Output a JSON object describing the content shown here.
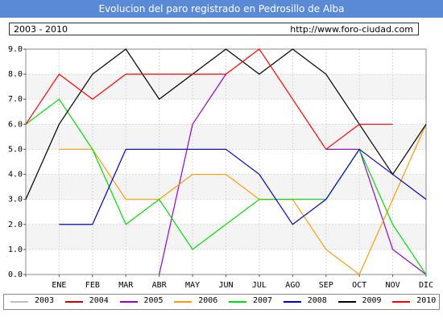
{
  "header": {
    "title": "Evolucion del paro registrado en Pedrosillo de Alba",
    "period": "2003 - 2010",
    "url": "http://www.foro-ciudad.com"
  },
  "chart_data": {
    "type": "line",
    "categories": [
      "",
      "ENE",
      "FEB",
      "MAR",
      "ABR",
      "MAY",
      "JUN",
      "JUL",
      "AGO",
      "SEP",
      "OCT",
      "NOV",
      "DIC"
    ],
    "ylim": [
      0,
      9
    ],
    "yticks": [
      "0.0",
      "1.0",
      "2.0",
      "3.0",
      "4.0",
      "5.0",
      "6.0",
      "7.0",
      "8.0",
      "9.0"
    ],
    "grid": true,
    "legend_position": "bottom",
    "series": [
      {
        "name": "2003",
        "color": "#c0c0c0",
        "values": [
          null,
          null,
          null,
          null,
          null,
          null,
          null,
          null,
          null,
          null,
          null,
          null,
          null
        ]
      },
      {
        "name": "2004",
        "color": "#cc0000",
        "values": [
          null,
          null,
          null,
          null,
          null,
          null,
          null,
          null,
          null,
          null,
          null,
          null,
          null
        ]
      },
      {
        "name": "2005",
        "color": "#9900cc",
        "values": [
          null,
          null,
          null,
          null,
          0,
          6,
          8,
          null,
          null,
          5,
          5,
          1,
          0
        ]
      },
      {
        "name": "2006",
        "color": "#ff9900",
        "values": [
          null,
          5,
          5,
          3,
          3,
          4,
          4,
          3,
          3,
          1,
          0,
          3,
          6
        ]
      },
      {
        "name": "2007",
        "color": "#00dd00",
        "values": [
          6,
          7,
          5,
          2,
          3,
          1,
          2,
          3,
          3,
          3,
          5,
          2,
          0
        ]
      },
      {
        "name": "2008",
        "color": "#0000cc",
        "values": [
          null,
          2,
          2,
          5,
          5,
          5,
          5,
          4,
          2,
          3,
          5,
          4,
          3
        ]
      },
      {
        "name": "2009",
        "color": "#000000",
        "values": [
          3,
          6,
          8,
          9,
          7,
          8,
          9,
          8,
          9,
          8,
          6,
          4,
          6
        ]
      },
      {
        "name": "2010",
        "color": "#ff0000",
        "values": [
          6,
          8,
          7,
          8,
          8,
          8,
          8,
          9,
          7,
          5,
          6,
          6,
          null
        ]
      }
    ]
  }
}
